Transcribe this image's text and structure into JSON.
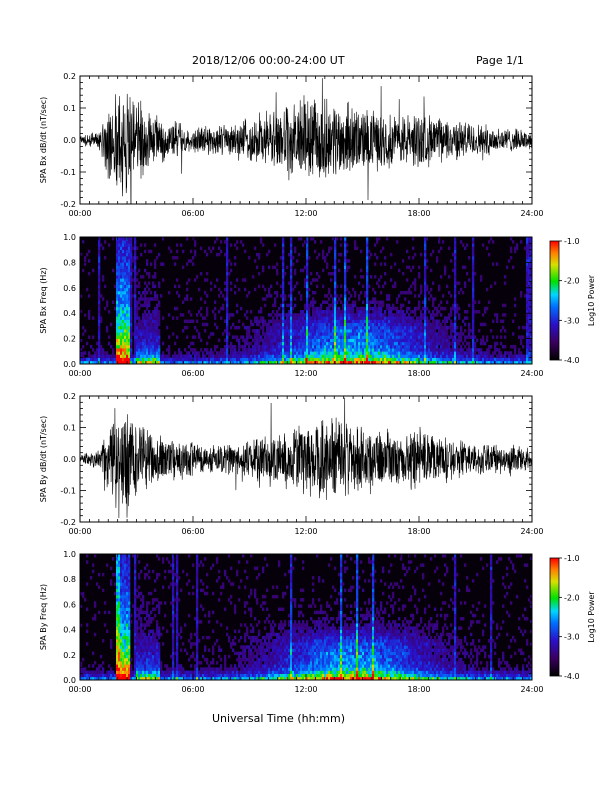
{
  "header": {
    "title": "2018/12/06  00:00-24:00 UT",
    "page": "Page 1/1"
  },
  "xlabel": "Universal Time (hh:mm)",
  "colors": {
    "trace": "#000000",
    "background": "#000000",
    "axes": "#000000"
  },
  "chart_data": [
    {
      "type": "line",
      "ylabel": "SPA Bx dB/dt (nT/sec)",
      "xlim": [
        "00:00",
        "24:00"
      ],
      "ylim": [
        -0.2,
        0.2
      ],
      "xticks": [
        "00:00",
        "06:00",
        "12:00",
        "18:00",
        "24:00"
      ],
      "yticks": [
        "-0.2",
        "-0.1",
        "0.0",
        "0.1",
        "0.2"
      ],
      "envelope_hours": [
        0,
        1,
        2,
        2.5,
        3,
        4,
        5,
        6,
        7,
        8,
        9,
        10,
        11,
        12,
        13,
        14,
        15,
        16,
        17,
        18,
        19,
        20,
        21,
        22,
        23,
        24
      ],
      "envelope_amplitude": [
        0.02,
        0.03,
        0.2,
        0.2,
        0.15,
        0.08,
        0.07,
        0.05,
        0.05,
        0.06,
        0.08,
        0.1,
        0.12,
        0.15,
        0.14,
        0.13,
        0.11,
        0.1,
        0.09,
        0.1,
        0.08,
        0.07,
        0.06,
        0.05,
        0.04,
        0.03
      ]
    },
    {
      "type": "heatmap",
      "ylabel": "SPA Bx Freq (Hz)",
      "xlim": [
        "00:00",
        "24:00"
      ],
      "ylim": [
        0.0,
        1.0
      ],
      "xticks": [
        "00:00",
        "06:00",
        "12:00",
        "18:00",
        "24:00"
      ],
      "yticks": [
        "0.0",
        "0.2",
        "0.4",
        "0.6",
        "0.8",
        "1.0"
      ],
      "colorbar": {
        "label": "Log10 Power",
        "range": [
          -4.0,
          -1.0
        ],
        "ticks": [
          "-1.0",
          "-2.0",
          "-3.0",
          "-4.0"
        ]
      }
    },
    {
      "type": "line",
      "ylabel": "SPA By dB/dt (nT/sec)",
      "xlim": [
        "00:00",
        "24:00"
      ],
      "ylim": [
        -0.2,
        0.2
      ],
      "xticks": [
        "00:00",
        "06:00",
        "12:00",
        "18:00",
        "24:00"
      ],
      "yticks": [
        "-0.2",
        "-0.1",
        "0.0",
        "0.1",
        "0.2"
      ],
      "envelope_hours": [
        0,
        1,
        2,
        2.5,
        3,
        4,
        5,
        6,
        7,
        8,
        9,
        10,
        11,
        12,
        13,
        14,
        15,
        16,
        17,
        18,
        19,
        20,
        21,
        22,
        23,
        24
      ],
      "envelope_amplitude": [
        0.02,
        0.03,
        0.2,
        0.2,
        0.14,
        0.09,
        0.08,
        0.06,
        0.05,
        0.06,
        0.07,
        0.09,
        0.11,
        0.14,
        0.15,
        0.14,
        0.12,
        0.11,
        0.1,
        0.12,
        0.09,
        0.07,
        0.06,
        0.05,
        0.05,
        0.04
      ]
    },
    {
      "type": "heatmap",
      "ylabel": "SPA By Freq (Hz)",
      "xlim": [
        "00:00",
        "24:00"
      ],
      "ylim": [
        0.0,
        1.0
      ],
      "xticks": [
        "00:00",
        "06:00",
        "12:00",
        "18:00",
        "24:00"
      ],
      "yticks": [
        "0.0",
        "0.2",
        "0.4",
        "0.6",
        "0.8",
        "1.0"
      ],
      "colorbar": {
        "label": "Log10 Power",
        "range": [
          -4.0,
          -1.0
        ],
        "ticks": [
          "-1.0",
          "-2.0",
          "-3.0",
          "-4.0"
        ]
      }
    }
  ]
}
